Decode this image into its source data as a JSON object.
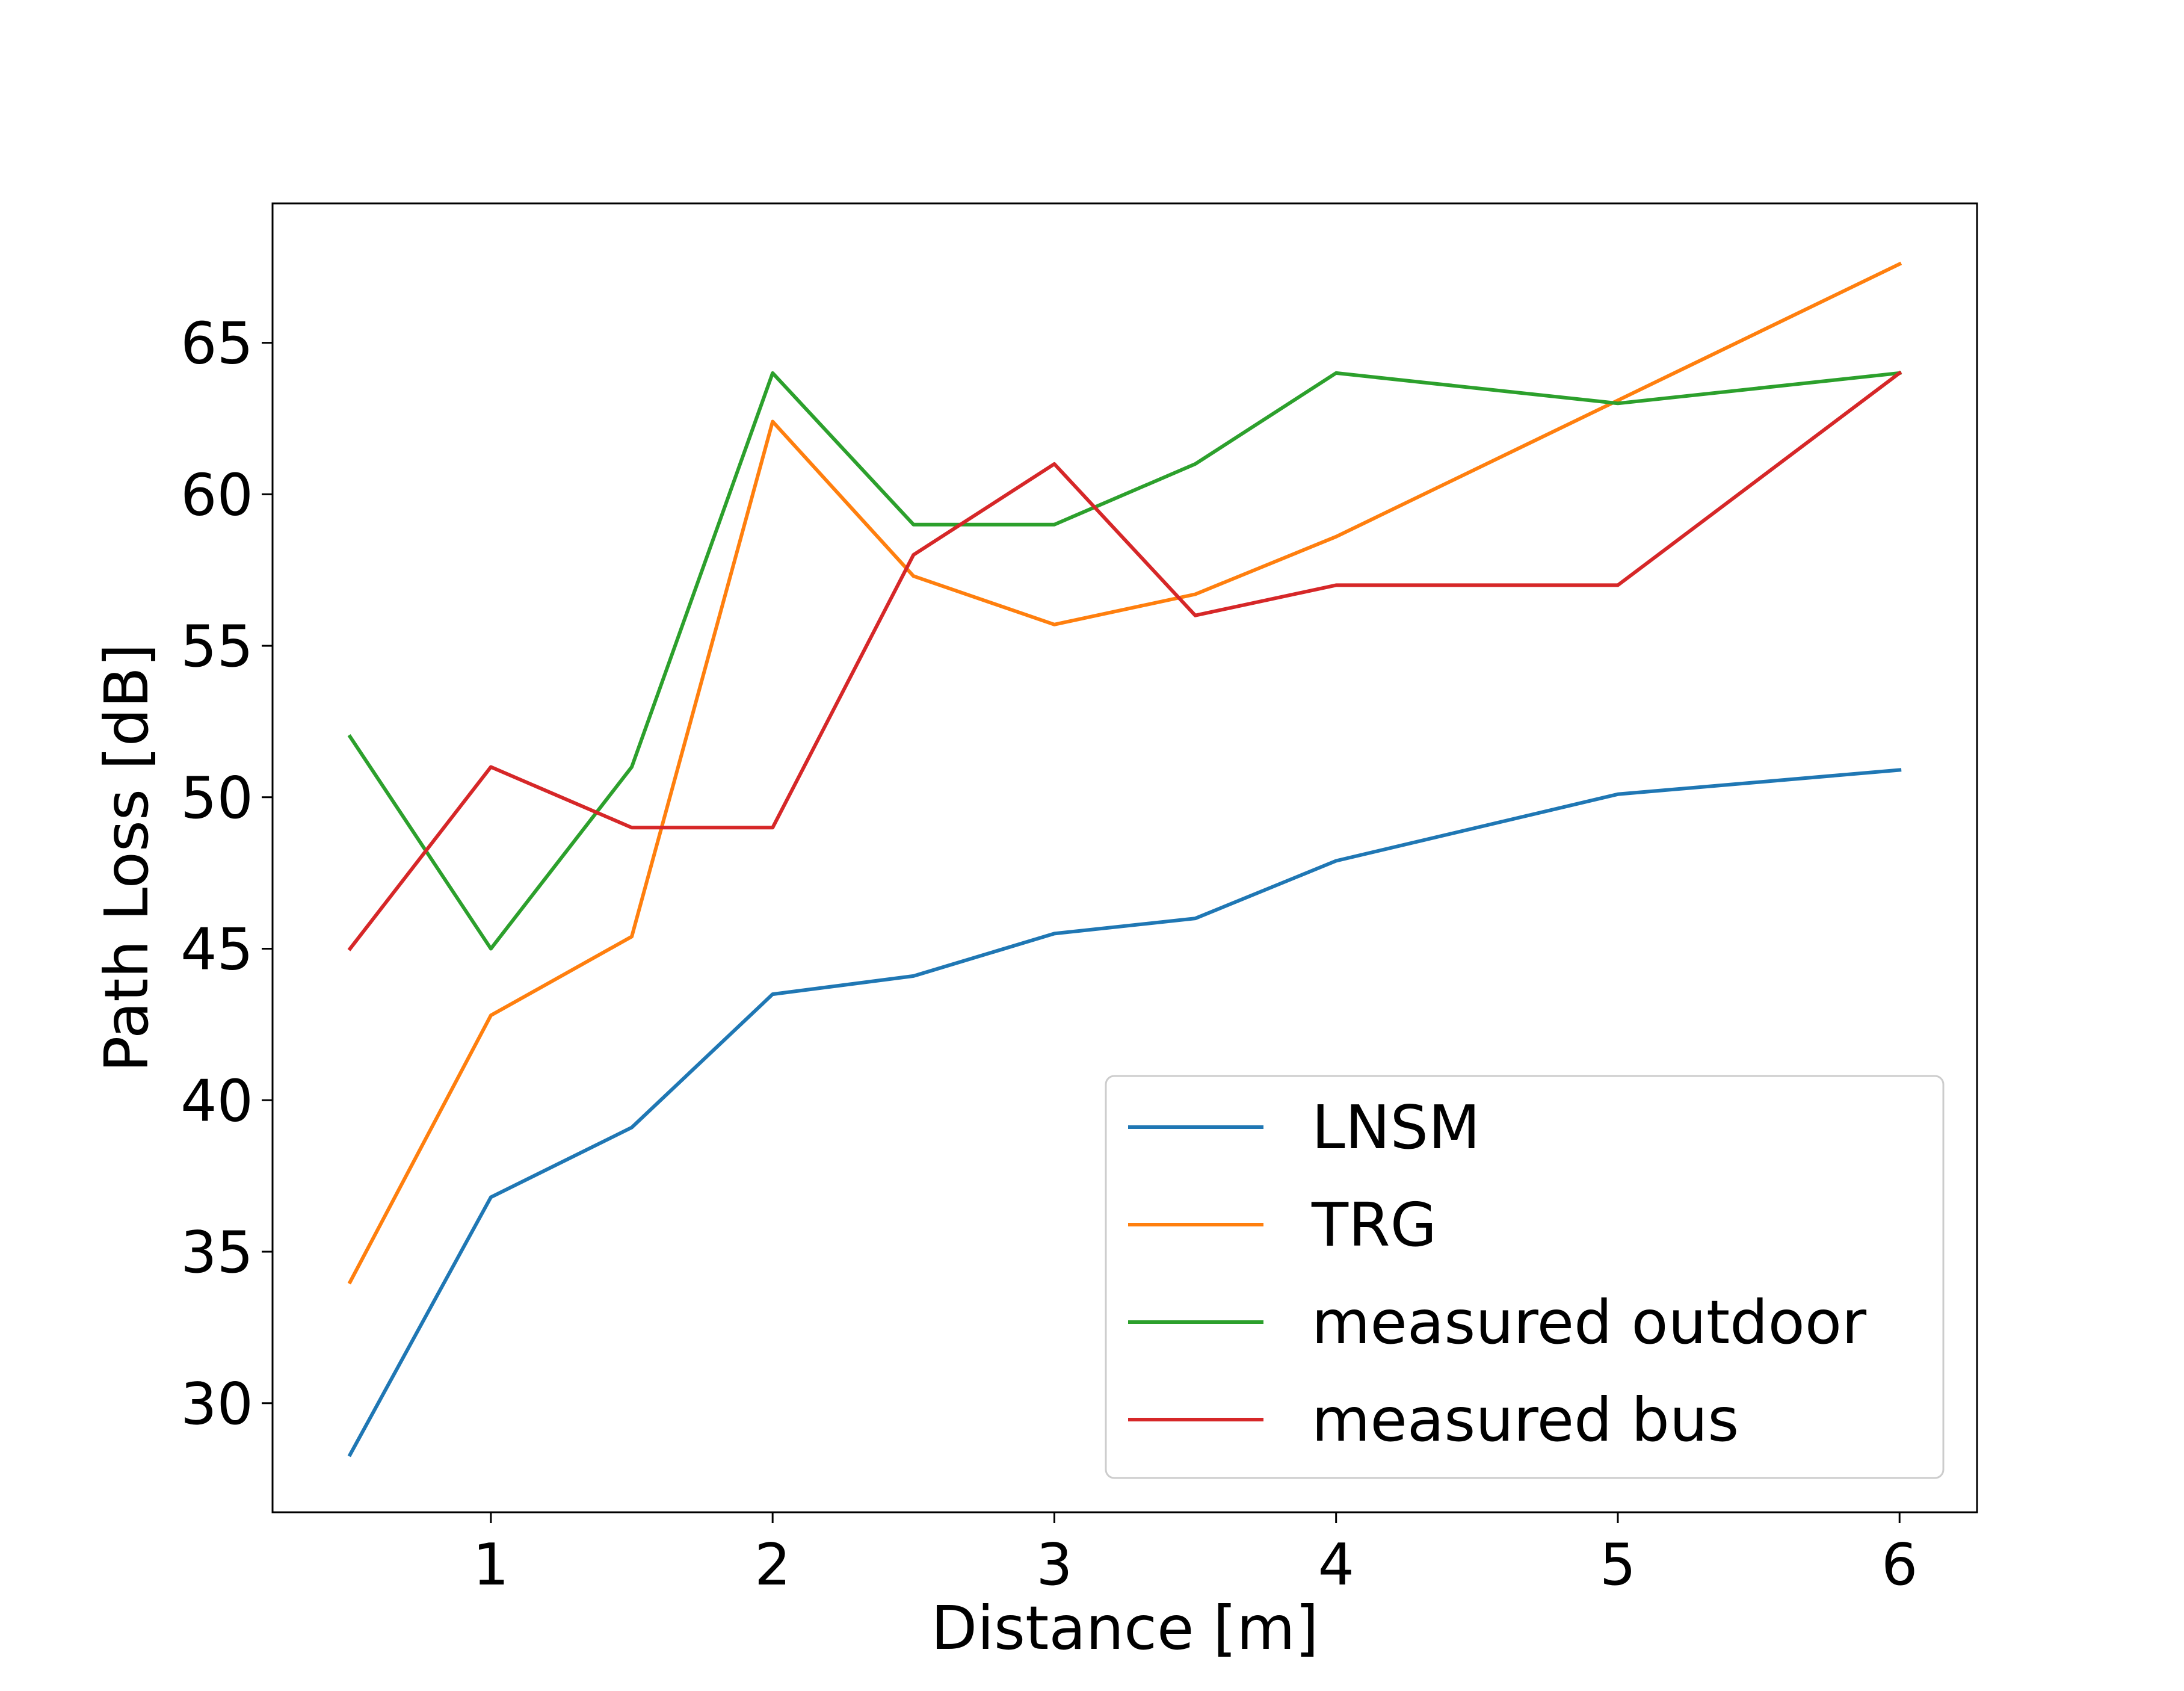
{
  "chart_data": {
    "type": "line",
    "xlabel": "Distance [m]",
    "ylabel": "Path Loss [dB]",
    "xlim": [
      0.225,
      6.275
    ],
    "ylim": [
      26.4,
      69.6
    ],
    "xticks": [
      1,
      2,
      3,
      4,
      5,
      6
    ],
    "yticks": [
      30,
      35,
      40,
      45,
      50,
      55,
      60,
      65
    ],
    "grid": false,
    "legend_position": "lower right",
    "x": [
      0.5,
      1,
      1.5,
      2,
      2.5,
      3,
      3.5,
      4,
      5,
      6
    ],
    "series": [
      {
        "name": "LNSM",
        "color": "#1f77b4",
        "values": [
          28.3,
          36.8,
          39.1,
          43.5,
          44.1,
          45.5,
          46.0,
          47.9,
          50.1,
          50.9
        ]
      },
      {
        "name": "TRG",
        "color": "#ff7f0e",
        "values": [
          34.0,
          42.8,
          45.4,
          62.4,
          57.3,
          55.7,
          56.7,
          58.6,
          63.1,
          67.6
        ]
      },
      {
        "name": "measured outdoor",
        "color": "#2ca02c",
        "values": [
          52,
          45,
          51,
          64,
          59,
          59,
          61,
          64,
          63,
          64
        ]
      },
      {
        "name": "measured bus",
        "color": "#d62728",
        "values": [
          45,
          51,
          49,
          49,
          58,
          61,
          56,
          57,
          57,
          64
        ]
      }
    ]
  }
}
